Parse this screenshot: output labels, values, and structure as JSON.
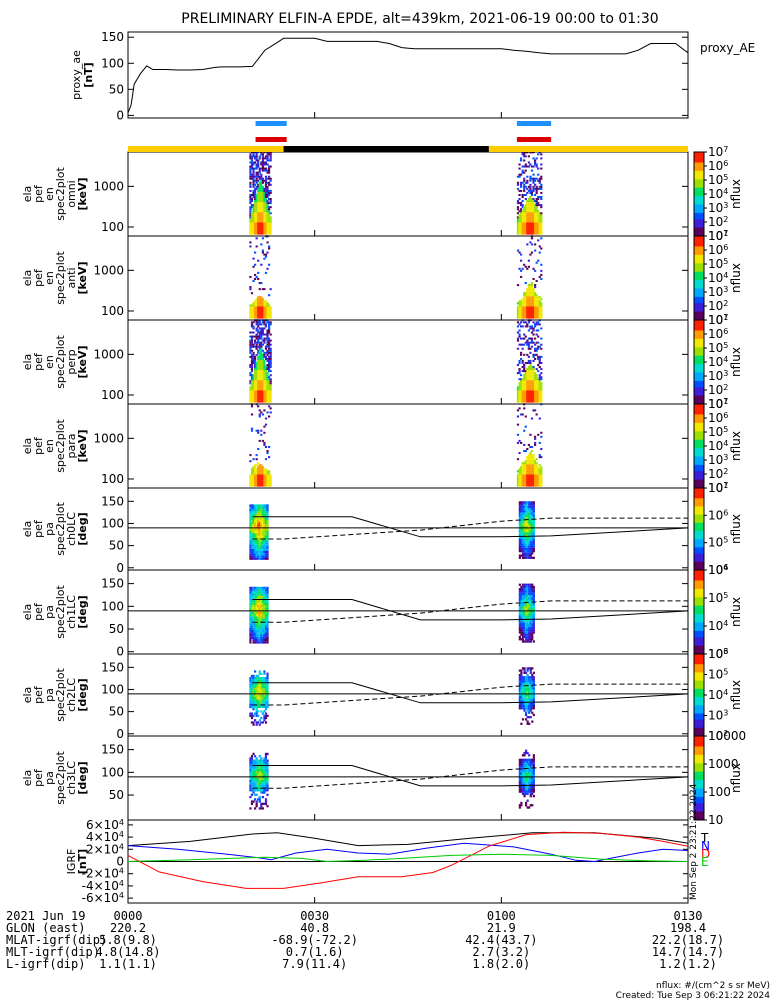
{
  "title": "PRELIMINARY ELFIN-A EPDE, alt=439km, 2021-06-19 00:00 to 01:30",
  "chart_data": [
    {
      "id": "ae",
      "type": "line",
      "ylabel": [
        "proxy_ae",
        "[nT]"
      ],
      "legend": "proxy_AE",
      "ylim": [
        -5,
        160
      ],
      "yticks": [
        "0",
        "50",
        "100",
        "150"
      ],
      "series": [
        {
          "name": "proxy_AE",
          "color": "#000000",
          "x": [
            0,
            0.5,
            1,
            2,
            3,
            4,
            5,
            6,
            8,
            10,
            12,
            14,
            15,
            16,
            18,
            20,
            22,
            24,
            25,
            26,
            28,
            30,
            32,
            34,
            36,
            38,
            40,
            42,
            44,
            46,
            48,
            50,
            52,
            54,
            56,
            58,
            60,
            62,
            64,
            66,
            68,
            70,
            72,
            74,
            76,
            78,
            80,
            82,
            84,
            86,
            88,
            90
          ],
          "y": [
            5,
            20,
            60,
            80,
            95,
            88,
            88,
            88,
            87,
            87,
            88,
            92,
            93,
            93,
            93,
            94,
            125,
            140,
            148,
            148,
            148,
            148,
            142,
            142,
            142,
            142,
            142,
            138,
            130,
            128,
            128,
            128,
            128,
            128,
            128,
            128,
            128,
            125,
            123,
            120,
            118,
            118,
            118,
            118,
            118,
            118,
            118,
            125,
            138,
            138,
            138,
            120
          ]
        }
      ]
    },
    {
      "id": "spec_omni",
      "type": "heatmap",
      "ylabel": [
        "ela",
        "pef",
        "en",
        "spec2plot",
        "omni",
        "[keV]"
      ],
      "yticks": [
        "100",
        "1000"
      ],
      "colorbar": {
        "label": "nflux",
        "ticks": [
          "10^7",
          "10^6",
          "10^5",
          "10^4",
          "10^3",
          "10^2",
          "10^1"
        ]
      }
    },
    {
      "id": "spec_anti",
      "type": "heatmap",
      "ylabel": [
        "ela",
        "pef",
        "en",
        "spec2plot",
        "anti",
        "[keV]"
      ],
      "yticks": [
        "100",
        "1000"
      ],
      "colorbar": {
        "label": "nflux",
        "ticks": [
          "10^7",
          "10^6",
          "10^5",
          "10^4",
          "10^3",
          "10^2",
          "10^1"
        ]
      }
    },
    {
      "id": "spec_perp",
      "type": "heatmap",
      "ylabel": [
        "ela",
        "pef",
        "en",
        "spec2plot",
        "perp",
        "[keV]"
      ],
      "yticks": [
        "100",
        "1000"
      ],
      "colorbar": {
        "label": "nflux",
        "ticks": [
          "10^7",
          "10^6",
          "10^5",
          "10^4",
          "10^3",
          "10^2",
          "10^1"
        ]
      }
    },
    {
      "id": "spec_para",
      "type": "heatmap",
      "ylabel": [
        "ela",
        "pef",
        "en",
        "spec2plot",
        "para",
        "[keV]"
      ],
      "yticks": [
        "100",
        "1000"
      ],
      "colorbar": {
        "label": "nflux",
        "ticks": [
          "10^7",
          "10^6",
          "10^5",
          "10^4",
          "10^3",
          "10^2",
          "10^1"
        ]
      }
    },
    {
      "id": "pa_ch0",
      "type": "heatmap",
      "ylabel": [
        "ela",
        "pef",
        "pa",
        "spec2plot",
        "ch0LC",
        "[deg]"
      ],
      "yticks": [
        "0",
        "50",
        "100",
        "150"
      ],
      "colorbar": {
        "label": "nflux",
        "ticks": [
          "10^7",
          "10^6",
          "10^5",
          "10^4"
        ]
      }
    },
    {
      "id": "pa_ch1",
      "type": "heatmap",
      "ylabel": [
        "ela",
        "pef",
        "pa",
        "spec2plot",
        "ch1LC",
        "[deg]"
      ],
      "yticks": [
        "0",
        "50",
        "100",
        "150"
      ],
      "colorbar": {
        "label": "nflux",
        "ticks": [
          "10^6",
          "10^5",
          "10^4",
          "10^3"
        ]
      }
    },
    {
      "id": "pa_ch2",
      "type": "heatmap",
      "ylabel": [
        "ela",
        "pef",
        "pa",
        "spec2plot",
        "ch2LC",
        "[deg]"
      ],
      "yticks": [
        "0",
        "50",
        "100",
        "150"
      ],
      "colorbar": {
        "label": "nflux",
        "ticks": [
          "10^6",
          "10^5",
          "10^4",
          "10^3",
          "10^2"
        ]
      }
    },
    {
      "id": "pa_ch3",
      "type": "heatmap",
      "ylabel": [
        "ela",
        "pef",
        "pa",
        "spec2plot",
        "ch3LC",
        "[deg]"
      ],
      "yticks": [
        "50",
        "100",
        "150"
      ],
      "colorbar": {
        "label": "nflux",
        "ticks": [
          "10000",
          "1000",
          "100",
          "10"
        ]
      }
    },
    {
      "id": "igrf",
      "type": "line",
      "ylabel": [
        "IGRF",
        "[nT]"
      ],
      "yticks": [
        "6×10^4",
        "4×10^4",
        "2×10^4",
        "0",
        "-2×10^4",
        "-4×10^4",
        "-6×10^4"
      ],
      "legend_letters": [
        "T",
        "N",
        "D",
        "E"
      ],
      "side_note": "Mon Sep  2 23:21:22 2024",
      "series": [
        {
          "name": "T",
          "color": "#000000",
          "x": [
            0,
            10,
            20,
            24,
            30,
            37,
            45,
            55,
            65,
            75,
            85,
            90
          ],
          "y": [
            26000,
            33000,
            45000,
            47000,
            38000,
            26000,
            28000,
            38000,
            47000,
            47000,
            38000,
            30000
          ]
        },
        {
          "name": "N",
          "color": "#0000ff",
          "x": [
            0,
            8,
            16,
            21,
            23,
            27,
            32,
            37,
            42,
            48,
            54,
            62,
            68,
            72,
            75,
            78,
            82,
            86,
            90
          ],
          "y": [
            26000,
            20000,
            12000,
            6000,
            3000,
            14000,
            20000,
            14000,
            12000,
            22000,
            30000,
            24000,
            12000,
            2000,
            0,
            6000,
            14000,
            20000,
            18000
          ]
        },
        {
          "name": "D",
          "color": "#ff0000",
          "x": [
            0,
            5,
            12,
            19,
            25,
            31,
            37,
            44,
            49,
            52,
            58,
            64,
            70,
            76,
            82,
            86,
            90
          ],
          "y": [
            10000,
            -17000,
            -33000,
            -44000,
            -44000,
            -35000,
            -25000,
            -25000,
            -18000,
            -6000,
            25000,
            44000,
            48000,
            46000,
            40000,
            33000,
            25000
          ]
        },
        {
          "name": "E",
          "color": "#00cc00",
          "x": [
            0,
            10,
            22,
            28,
            32,
            38,
            44,
            52,
            60,
            68,
            76,
            84,
            90
          ],
          "y": [
            0,
            3000,
            7000,
            5000,
            0,
            2000,
            5000,
            10000,
            12000,
            10000,
            4000,
            1000,
            0
          ]
        }
      ]
    }
  ],
  "time_axis": {
    "range_minutes": [
      0,
      90
    ],
    "ticks": [
      "0000",
      "0030",
      "0100",
      "0130"
    ],
    "date": "2021 Jun 19"
  },
  "ephemeris": [
    {
      "label": "GLON (east)",
      "values": [
        "220.2",
        "40.8",
        "21.9",
        "198.4"
      ]
    },
    {
      "label": "MLAT-igrf(dip)",
      "values": [
        "5.8(9.8)",
        "-68.9(-72.2)",
        "42.4(43.7)",
        "22.2(18.7)"
      ]
    },
    {
      "label": "MLT-igrf(dip)",
      "values": [
        "4.8(14.8)",
        "0.7(1.6)",
        "2.7(3.2)",
        "14.7(14.7)"
      ]
    },
    {
      "label": "L-igrf(dip)",
      "values": [
        "1.1(1.1)",
        "7.9(11.4)",
        "1.8(2.0)",
        "1.2(1.2)"
      ]
    }
  ],
  "footer": {
    "units": "nflux: #/(cm^2 s sr MeV)",
    "created": "Created: Tue Sep  3 06:21:22 2024"
  },
  "colors": {
    "bar_yellow": "#ffcc00",
    "bar_black": "#000000",
    "bar_blue": "#1e90ff",
    "bar_red": "#dd0000"
  }
}
